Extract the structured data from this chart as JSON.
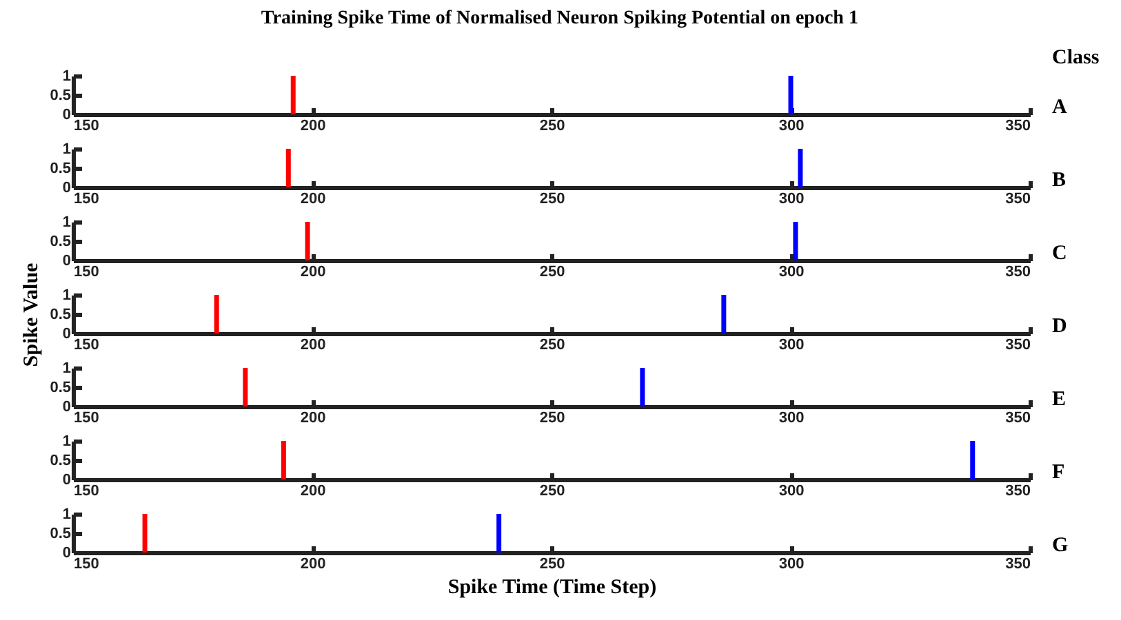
{
  "chart_data": [
    {
      "type": "bar",
      "title": "Training Spike Time of Normalised Neuron Spiking Potential on epoch 1",
      "annotations": [
        "Class",
        "A"
      ],
      "xlim": [
        150,
        350
      ],
      "xticks": [
        150,
        200,
        250,
        300,
        350
      ],
      "ylim": [
        0,
        1
      ],
      "yticks": [
        0,
        0.5,
        1
      ],
      "series": [
        {
          "color": "#ff0000",
          "x": [
            196
          ],
          "values": [
            1
          ]
        },
        {
          "color": "#0000ff",
          "x": [
            300
          ],
          "values": [
            1
          ]
        }
      ]
    },
    {
      "type": "bar",
      "annotations": [
        "B"
      ],
      "xlim": [
        150,
        350
      ],
      "xticks": [
        150,
        200,
        250,
        300,
        350
      ],
      "ylim": [
        0,
        1
      ],
      "yticks": [
        0,
        0.5,
        1
      ],
      "series": [
        {
          "color": "#ff0000",
          "x": [
            195
          ],
          "values": [
            1
          ]
        },
        {
          "color": "#0000ff",
          "x": [
            302
          ],
          "values": [
            1
          ]
        }
      ]
    },
    {
      "type": "bar",
      "annotations": [
        "C"
      ],
      "xlim": [
        150,
        350
      ],
      "xticks": [
        150,
        200,
        250,
        300,
        350
      ],
      "ylim": [
        0,
        1
      ],
      "yticks": [
        0,
        0.5,
        1
      ],
      "series": [
        {
          "color": "#ff0000",
          "x": [
            199
          ],
          "values": [
            1
          ]
        },
        {
          "color": "#0000ff",
          "x": [
            301
          ],
          "values": [
            1
          ]
        }
      ]
    },
    {
      "type": "bar",
      "ylabel": "Spike Value",
      "annotations": [
        "D"
      ],
      "xlim": [
        150,
        350
      ],
      "xticks": [
        150,
        200,
        250,
        300,
        350
      ],
      "ylim": [
        0,
        1
      ],
      "yticks": [
        0,
        0.5,
        1
      ],
      "series": [
        {
          "color": "#ff0000",
          "x": [
            180
          ],
          "values": [
            1
          ]
        },
        {
          "color": "#0000ff",
          "x": [
            286
          ],
          "values": [
            1
          ]
        }
      ]
    },
    {
      "type": "bar",
      "annotations": [
        "E"
      ],
      "xlim": [
        150,
        350
      ],
      "xticks": [
        150,
        200,
        250,
        300,
        350
      ],
      "ylim": [
        0,
        1
      ],
      "yticks": [
        0,
        0.5,
        1
      ],
      "series": [
        {
          "color": "#ff0000",
          "x": [
            186
          ],
          "values": [
            1
          ]
        },
        {
          "color": "#0000ff",
          "x": [
            269
          ],
          "values": [
            1
          ]
        }
      ]
    },
    {
      "type": "bar",
      "annotations": [
        "F"
      ],
      "xlim": [
        150,
        350
      ],
      "xticks": [
        150,
        200,
        250,
        300,
        350
      ],
      "ylim": [
        0,
        1
      ],
      "yticks": [
        0,
        0.5,
        1
      ],
      "series": [
        {
          "color": "#ff0000",
          "x": [
            194
          ],
          "values": [
            1
          ]
        },
        {
          "color": "#0000ff",
          "x": [
            338
          ],
          "values": [
            1
          ]
        }
      ]
    },
    {
      "type": "bar",
      "xlabel": "Spike Time (Time Step)",
      "annotations": [
        "G"
      ],
      "xlim": [
        150,
        350
      ],
      "xticks": [
        150,
        200,
        250,
        300,
        350
      ],
      "ylim": [
        0,
        1
      ],
      "yticks": [
        0,
        0.5,
        1
      ],
      "series": [
        {
          "color": "#ff0000",
          "x": [
            165
          ],
          "values": [
            1
          ]
        },
        {
          "color": "#0000ff",
          "x": [
            239
          ],
          "values": [
            1
          ]
        }
      ]
    }
  ]
}
